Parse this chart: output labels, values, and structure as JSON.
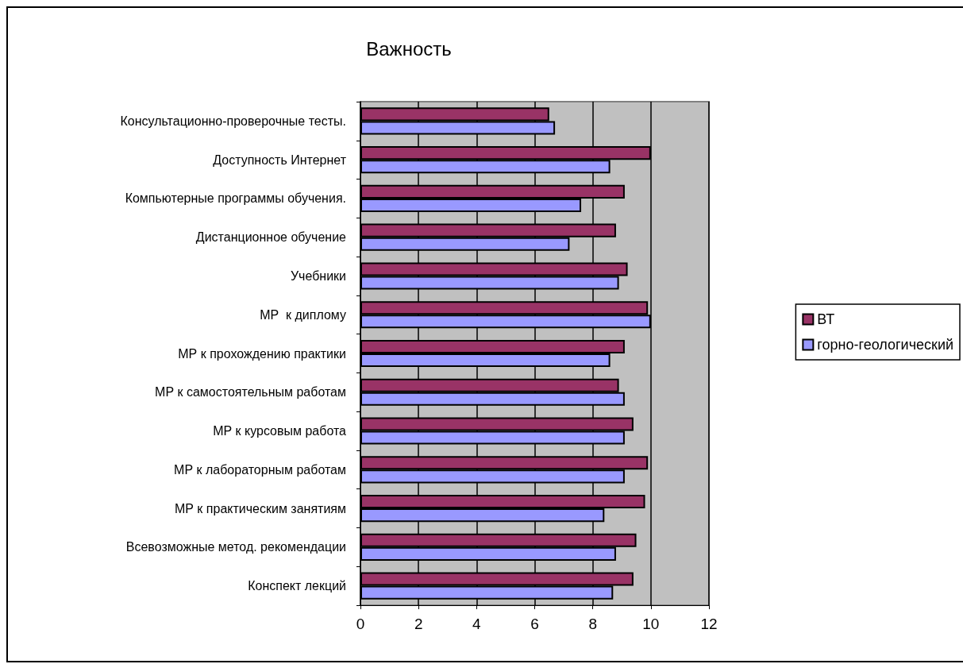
{
  "chart_data": {
    "type": "bar",
    "title": "Важность",
    "orientation": "horizontal",
    "categories": [
      "Консультационно-проверочные тесты.",
      "Доступность Интернет",
      "Компьютерные программы обучения.",
      "Дистанционное обучение",
      "Учебники",
      "МР  к диплому",
      "МР к прохождению практики",
      "МР к самостоятельным работам",
      "МР к курсовым работа",
      "МР к лабораторным работам",
      "МР к практическим занятиям",
      "Всевозможные метод. рекомендации",
      "Конспект лекций"
    ],
    "series": [
      {
        "name": "ВТ",
        "color": "#993366",
        "values": [
          6.5,
          10.0,
          9.1,
          8.8,
          9.2,
          9.9,
          9.1,
          8.9,
          9.4,
          9.9,
          9.8,
          9.5,
          9.4
        ]
      },
      {
        "name": "горно-геологический",
        "color": "#9999ff",
        "values": [
          6.7,
          8.6,
          7.6,
          7.2,
          8.9,
          10.0,
          8.6,
          9.1,
          9.1,
          9.1,
          8.4,
          8.8,
          8.7
        ]
      }
    ],
    "xlim": [
      0,
      12
    ],
    "xticks": [
      0,
      2,
      4,
      6,
      8,
      10,
      12
    ],
    "grid": "x",
    "legend": "right"
  }
}
